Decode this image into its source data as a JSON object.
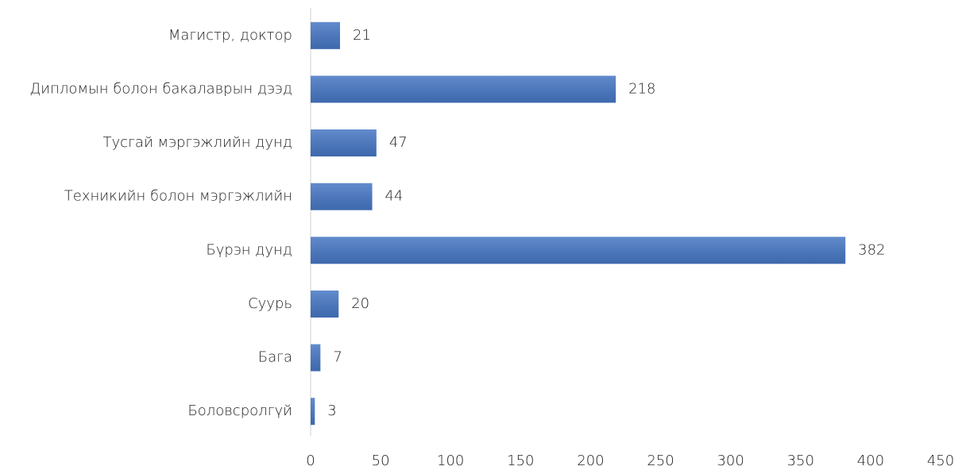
{
  "chart_data": {
    "type": "bar",
    "orientation": "horizontal",
    "categories": [
      "Магистр, доктор",
      "Дипломын болон бакалаврын дээд",
      "Тусгай мэргэжлийн дунд",
      "Техникийн болон мэргэжлийн",
      "Бүрэн дунд",
      "Суурь",
      "Бага",
      "Боловсролгүй"
    ],
    "values": [
      21,
      218,
      47,
      44,
      382,
      20,
      7,
      3
    ],
    "color": "#4677c4",
    "xlim": [
      0,
      450
    ],
    "xticks": [
      0,
      50,
      100,
      150,
      200,
      250,
      300,
      350,
      400,
      450
    ],
    "grid": false
  }
}
